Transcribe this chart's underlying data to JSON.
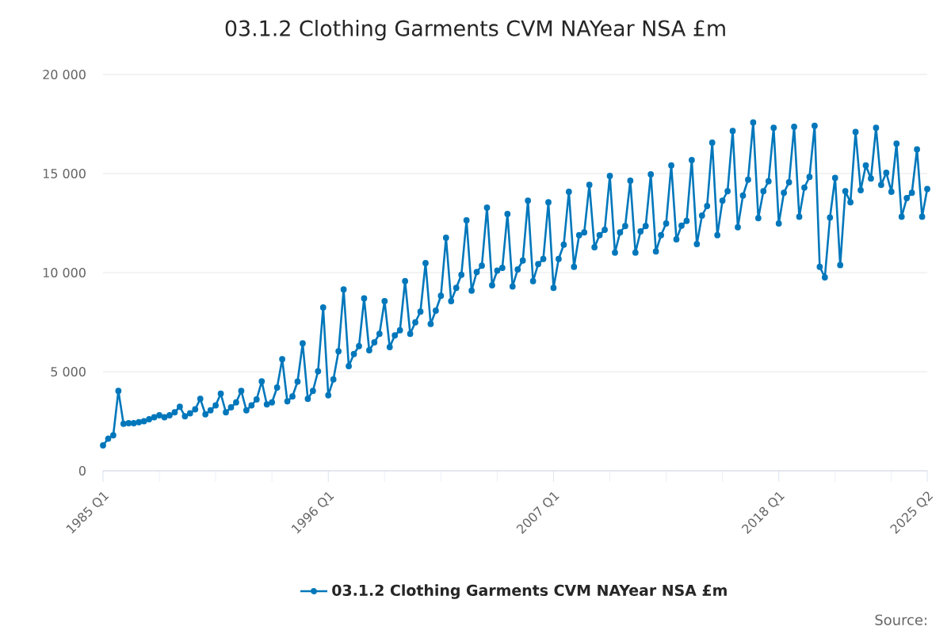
{
  "chart_data": {
    "type": "line",
    "title": "03.1.2 Clothing Garments CVM NAYear NSA £m",
    "categories": [
      "1985 Q1",
      null,
      null,
      null,
      null,
      null,
      null,
      null,
      null,
      null,
      null,
      null,
      null,
      null,
      null,
      null,
      null,
      null,
      null,
      null,
      null,
      null,
      null,
      null,
      null,
      null,
      null,
      null,
      null,
      null,
      null,
      null,
      null,
      null,
      null,
      null,
      null,
      null,
      null,
      null,
      null,
      null,
      null,
      null,
      "1996 Q1",
      null,
      null,
      null,
      null,
      null,
      null,
      null,
      null,
      null,
      null,
      null,
      null,
      null,
      null,
      null,
      null,
      null,
      null,
      null,
      null,
      null,
      null,
      null,
      null,
      null,
      null,
      null,
      null,
      null,
      null,
      null,
      null,
      null,
      null,
      null,
      null,
      null,
      null,
      null,
      null,
      null,
      null,
      null,
      "2007 Q1",
      null,
      null,
      null,
      null,
      null,
      null,
      null,
      null,
      null,
      null,
      null,
      null,
      null,
      null,
      null,
      null,
      null,
      null,
      null,
      null,
      null,
      null,
      null,
      null,
      null,
      null,
      null,
      null,
      null,
      null,
      null,
      null,
      null,
      null,
      null,
      null,
      null,
      null,
      null,
      null,
      null,
      null,
      null,
      "2018 Q1",
      null,
      null,
      null,
      null,
      null,
      null,
      null,
      null,
      null,
      null,
      null,
      null,
      null,
      null,
      null,
      null,
      null,
      null,
      null,
      null,
      null,
      null,
      null,
      null,
      null,
      null,
      null,
      null,
      "2025 Q2"
    ],
    "series": [
      {
        "name": "03.1.2 Clothing Garments CVM NAYear NSA £m",
        "color": "#0077bb",
        "values": [
          1280,
          1620,
          1790,
          4030,
          2370,
          2400,
          2400,
          2450,
          2500,
          2600,
          2700,
          2800,
          2700,
          2800,
          2950,
          3230,
          2750,
          2900,
          3100,
          3630,
          2850,
          3050,
          3300,
          3890,
          2950,
          3200,
          3450,
          4030,
          3050,
          3300,
          3600,
          4510,
          3350,
          3450,
          4200,
          5630,
          3500,
          3750,
          4500,
          6430,
          3630,
          4030,
          5020,
          8240,
          3810,
          4610,
          6030,
          9150,
          5280,
          5890,
          6290,
          8700,
          6080,
          6480,
          6910,
          8560,
          6240,
          6830,
          7090,
          9570,
          6910,
          7490,
          8030,
          10480,
          7410,
          8080,
          8830,
          11760,
          8560,
          9230,
          9890,
          12640,
          9090,
          10030,
          10350,
          13280,
          9360,
          10100,
          10240,
          12960,
          9300,
          10160,
          10610,
          13630,
          9570,
          10430,
          10690,
          13550,
          9230,
          10690,
          11410,
          14080,
          10290,
          11890,
          12030,
          14430,
          11280,
          11890,
          12160,
          14880,
          11010,
          12030,
          12350,
          14640,
          11010,
          12080,
          12350,
          14960,
          11070,
          11890,
          12480,
          15410,
          11680,
          12370,
          12610,
          15680,
          11440,
          12880,
          13360,
          16560,
          11890,
          13630,
          14110,
          17150,
          12290,
          13890,
          14690,
          17580,
          12750,
          14110,
          14610,
          17310,
          12480,
          14030,
          14560,
          17360,
          12820,
          14290,
          14830,
          17410,
          10290,
          9760,
          12780,
          14780,
          10380,
          14110,
          13550,
          17100,
          14160,
          15410,
          14750,
          17310,
          14430,
          15040,
          14080,
          16510,
          12820,
          13760,
          14030,
          16220,
          12820,
          14220
        ]
      }
    ],
    "ylim": [
      0,
      20000
    ],
    "yticks": [
      0,
      {
        "value": 5000,
        "label": "5 000"
      },
      {
        "value": 10000,
        "label": "10 000"
      },
      {
        "value": 15000,
        "label": "15 000"
      },
      {
        "value": 20000,
        "label": "20 000"
      }
    ],
    "grid": "y",
    "legend": "bottom",
    "marker": "circle",
    "line_style": "solid",
    "annotations": [
      "Source:"
    ]
  }
}
